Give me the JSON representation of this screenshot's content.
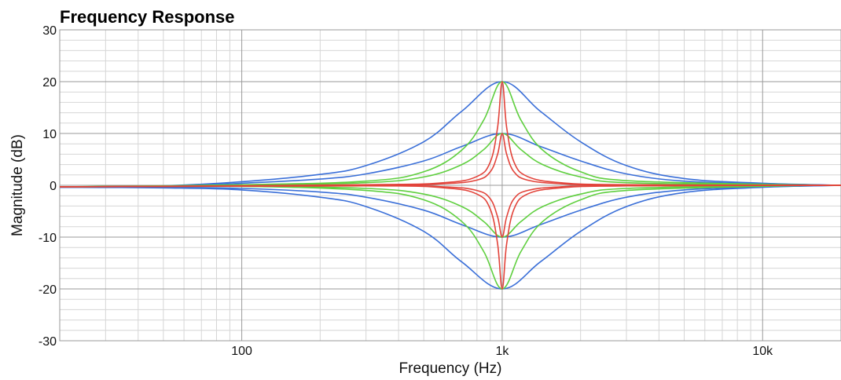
{
  "chart_data": {
    "type": "line",
    "title": "Frequency Response",
    "xlabel": "Frequency (Hz)",
    "ylabel": "Magnitude (dB)",
    "xscale": "log",
    "xlim": [
      20,
      20000
    ],
    "ylim": [
      -30,
      30
    ],
    "x_ticks": [
      {
        "value": 100,
        "label": "100"
      },
      {
        "value": 1000,
        "label": "1k"
      },
      {
        "value": 10000,
        "label": "10k"
      }
    ],
    "y_ticks": [
      {
        "value": 30,
        "label": "30"
      },
      {
        "value": 20,
        "label": "20"
      },
      {
        "value": 10,
        "label": "10"
      },
      {
        "value": 0,
        "label": "0"
      },
      {
        "value": -10,
        "label": "-10"
      },
      {
        "value": -20,
        "label": "-20"
      },
      {
        "value": -30,
        "label": "-30"
      }
    ],
    "grid": true,
    "legend": "none",
    "colors": {
      "blue": "#3a6fd8",
      "green": "#5fcf3f",
      "red": "#e2433a",
      "grid_major": "#9a9a9a",
      "grid_minor": "#d6d6d6"
    },
    "series": [
      {
        "color": "blue",
        "x": [
          20,
          50,
          100,
          200,
          300,
          500,
          700,
          1000,
          1400,
          2000,
          3000,
          5000,
          10000,
          20000
        ],
        "y": [
          -0.4,
          -0.1,
          0.7,
          2.1,
          3.8,
          8.4,
          14.3,
          20,
          14.3,
          8.4,
          3.8,
          1.3,
          0.4,
          0
        ]
      },
      {
        "color": "blue",
        "x": [
          20,
          50,
          100,
          200,
          300,
          500,
          700,
          1000,
          1400,
          2000,
          3000,
          5000,
          10000,
          20000
        ],
        "y": [
          -0.4,
          -0.2,
          0.4,
          1.2,
          2.2,
          4.7,
          7.5,
          10,
          7.5,
          4.7,
          2.2,
          0.8,
          0.3,
          0
        ]
      },
      {
        "color": "blue",
        "x": [
          20,
          50,
          100,
          200,
          300,
          500,
          700,
          1000,
          1400,
          2000,
          3000,
          5000,
          10000,
          20000
        ],
        "y": [
          -0.4,
          -0.4,
          -0.6,
          -1.3,
          -2.3,
          -4.8,
          -7.6,
          -10,
          -7.6,
          -4.8,
          -2.3,
          -0.9,
          -0.3,
          0
        ]
      },
      {
        "color": "blue",
        "x": [
          20,
          50,
          100,
          200,
          300,
          500,
          700,
          1000,
          1400,
          2000,
          3000,
          5000,
          10000,
          20000
        ],
        "y": [
          -0.4,
          -0.5,
          -0.9,
          -2.3,
          -4.1,
          -8.9,
          -14.8,
          -20,
          -14.8,
          -8.9,
          -4.1,
          -1.4,
          -0.4,
          0
        ]
      },
      {
        "color": "green",
        "x": [
          20,
          100,
          300,
          500,
          700,
          850,
          1000,
          1180,
          1430,
          2000,
          3000,
          10000,
          20000
        ],
        "y": [
          -0.3,
          0.1,
          0.8,
          2.6,
          6.8,
          12.6,
          20,
          12.6,
          6.8,
          2.6,
          0.9,
          0.2,
          0
        ]
      },
      {
        "color": "green",
        "x": [
          20,
          100,
          300,
          500,
          700,
          850,
          1000,
          1180,
          1430,
          2000,
          3000,
          10000,
          20000
        ],
        "y": [
          -0.3,
          0.0,
          0.5,
          1.6,
          4.0,
          6.9,
          10,
          6.9,
          4.0,
          1.6,
          0.5,
          0.1,
          0
        ]
      },
      {
        "color": "green",
        "x": [
          20,
          100,
          300,
          500,
          700,
          850,
          1000,
          1180,
          1430,
          2000,
          3000,
          10000,
          20000
        ],
        "y": [
          -0.3,
          -0.2,
          -0.6,
          -1.7,
          -4.1,
          -7.0,
          -10,
          -7.0,
          -4.1,
          -1.7,
          -0.6,
          -0.1,
          0
        ]
      },
      {
        "color": "green",
        "x": [
          20,
          100,
          300,
          500,
          700,
          850,
          1000,
          1180,
          1430,
          2000,
          3000,
          10000,
          20000
        ],
        "y": [
          -0.3,
          -0.2,
          -1.0,
          -2.8,
          -7.0,
          -12.8,
          -20,
          -12.8,
          -7.0,
          -2.8,
          -1.0,
          -0.2,
          0
        ]
      },
      {
        "color": "red",
        "x": [
          20,
          300,
          600,
          800,
          900,
          960,
          1000,
          1040,
          1110,
          1250,
          1670,
          3000,
          20000
        ],
        "y": [
          -0.3,
          0.1,
          0.5,
          1.7,
          4.5,
          11.2,
          20,
          11.2,
          4.5,
          1.7,
          0.5,
          0.1,
          0
        ]
      },
      {
        "color": "red",
        "x": [
          20,
          300,
          600,
          800,
          900,
          960,
          1000,
          1040,
          1110,
          1250,
          1670,
          3000,
          20000
        ],
        "y": [
          -0.3,
          0.0,
          0.3,
          1.0,
          2.6,
          6.0,
          10,
          6.0,
          2.6,
          1.0,
          0.3,
          0.0,
          0
        ]
      },
      {
        "color": "red",
        "x": [
          20,
          300,
          600,
          800,
          900,
          960,
          1000,
          1040,
          1110,
          1250,
          1670,
          3000,
          20000
        ],
        "y": [
          -0.3,
          -0.1,
          -0.3,
          -1.0,
          -2.6,
          -6.1,
          -10,
          -6.1,
          -2.6,
          -1.0,
          -0.3,
          -0.1,
          0
        ]
      },
      {
        "color": "red",
        "x": [
          20,
          300,
          600,
          800,
          900,
          960,
          1000,
          1040,
          1110,
          1250,
          1670,
          3000,
          20000
        ],
        "y": [
          -0.3,
          -0.1,
          -0.5,
          -1.7,
          -4.6,
          -11.3,
          -20,
          -11.3,
          -4.6,
          -1.7,
          -0.5,
          -0.1,
          0
        ]
      }
    ]
  }
}
